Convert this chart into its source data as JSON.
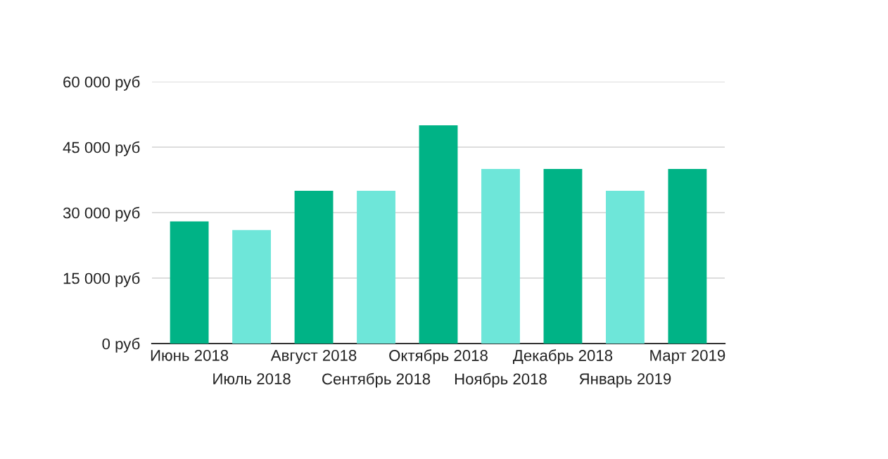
{
  "chart_data": {
    "type": "bar",
    "categories": [
      "Июнь 2018",
      "Июль 2018",
      "Август 2018",
      "Сентябрь 2018",
      "Октябрь 2018",
      "Ноябрь 2018",
      "Декабрь 2018",
      "Январь 2019",
      "Март 2019"
    ],
    "values": [
      28000,
      26000,
      35000,
      35000,
      50000,
      40000,
      40000,
      35000,
      40000
    ],
    "colors": [
      "#00b386",
      "#6ee6d9",
      "#00b386",
      "#6ee6d9",
      "#00b386",
      "#6ee6d9",
      "#00b386",
      "#6ee6d9",
      "#00b386"
    ],
    "ylim": [
      0,
      60000
    ],
    "yticks": [
      {
        "value": 0,
        "label": "0 руб"
      },
      {
        "value": 15000,
        "label": "15 000 руб"
      },
      {
        "value": 30000,
        "label": "30 000 руб"
      },
      {
        "value": 45000,
        "label": "45 000 руб"
      },
      {
        "value": 60000,
        "label": "60 000 руб"
      }
    ],
    "grid": "y"
  }
}
